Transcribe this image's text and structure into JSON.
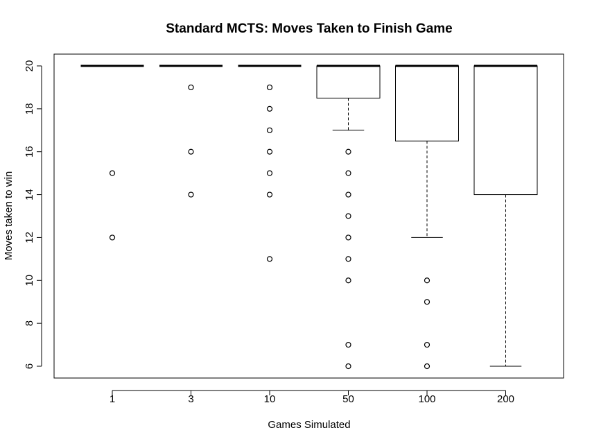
{
  "chart_data": {
    "type": "boxplot",
    "title": "Standard MCTS: Moves Taken to Finish Game",
    "xlabel": "Games Simulated",
    "ylabel": "Moves taken to win",
    "categories": [
      "1",
      "3",
      "10",
      "50",
      "100",
      "200"
    ],
    "ylim": [
      5.45,
      20.55
    ],
    "yticks": [
      6,
      8,
      10,
      12,
      14,
      16,
      18,
      20
    ],
    "grid": false,
    "boxes": [
      {
        "category": "1",
        "whisker_low": 20,
        "q1": 20,
        "median": 20,
        "q3": 20,
        "whisker_high": 20,
        "outliers": [
          15,
          12
        ]
      },
      {
        "category": "3",
        "whisker_low": 20,
        "q1": 20,
        "median": 20,
        "q3": 20,
        "whisker_high": 20,
        "outliers": [
          19,
          16,
          14
        ]
      },
      {
        "category": "10",
        "whisker_low": 20,
        "q1": 20,
        "median": 20,
        "q3": 20,
        "whisker_high": 20,
        "outliers": [
          19,
          18,
          17,
          16,
          15,
          14,
          11
        ]
      },
      {
        "category": "50",
        "whisker_low": 17,
        "q1": 18.5,
        "median": 20,
        "q3": 20,
        "whisker_high": 20,
        "outliers": [
          16,
          15,
          14,
          13,
          12,
          11,
          10,
          7,
          6
        ]
      },
      {
        "category": "100",
        "whisker_low": 12,
        "q1": 16.5,
        "median": 20,
        "q3": 20,
        "whisker_high": 20,
        "outliers": [
          10,
          9,
          7,
          6
        ]
      },
      {
        "category": "200",
        "whisker_low": 6,
        "q1": 14,
        "median": 20,
        "q3": 20,
        "whisker_high": 20,
        "outliers": []
      }
    ]
  }
}
